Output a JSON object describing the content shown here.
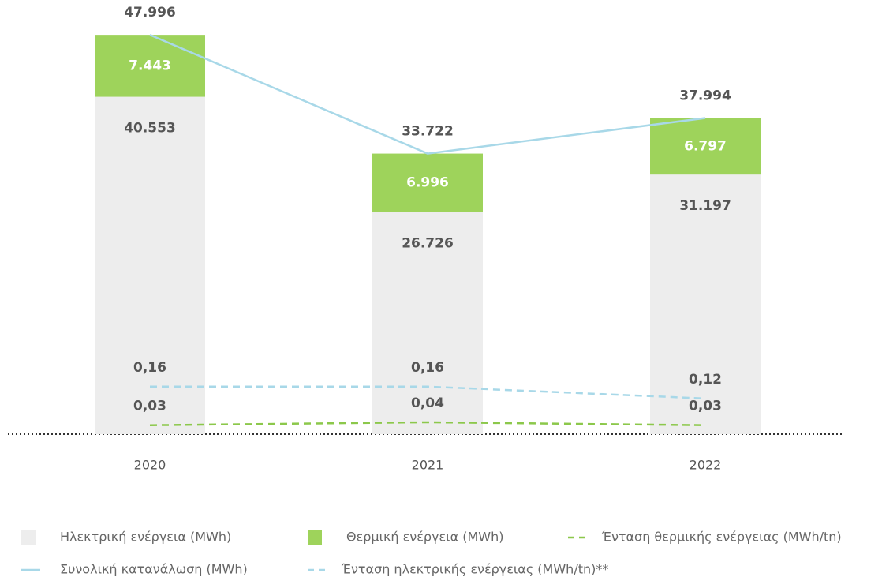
{
  "chart_data": {
    "type": "bar",
    "categories": [
      "2020",
      "2021",
      "2022"
    ],
    "ylim": [
      0,
      50000
    ],
    "y2lim": [
      0,
      1.4
    ],
    "series": [
      {
        "name": "Ηλεκτρική ενέργεια (MWh)",
        "type": "bar",
        "color": "#ededed",
        "values": [
          40553,
          26726,
          31197
        ],
        "value_labels": [
          "40.553",
          "26.726",
          "31.197"
        ]
      },
      {
        "name": "Θερμική ενέργεια (MWh)",
        "type": "bar",
        "color": "#9ed35b",
        "values": [
          7443,
          6996,
          6797
        ],
        "value_labels": [
          "7.443",
          "6.996",
          "6.797"
        ]
      },
      {
        "name": "Ένταση θερμικής ενέργειας (MWh/tn)",
        "type": "line",
        "style": "dashed",
        "axis": "y2",
        "color": "#8cc84b",
        "values": [
          0.03,
          0.04,
          0.03
        ],
        "value_labels": [
          "0,03",
          "0,04",
          "0,03"
        ]
      },
      {
        "name": "Συνολική κατανάλωση (MWh)",
        "type": "line",
        "style": "solid",
        "color": "#a8d8e8",
        "values": [
          47996,
          33722,
          37994
        ],
        "value_labels": [
          "47.996",
          "33.722",
          "37.994"
        ]
      },
      {
        "name": "Ένταση ηλεκτρικής ενέργειας (MWh/tn)**",
        "type": "line",
        "style": "dashed",
        "axis": "y2",
        "color": "#a8d8e8",
        "values": [
          0.16,
          0.16,
          0.12
        ],
        "value_labels": [
          "0,16",
          "0,16",
          "0,12"
        ]
      }
    ]
  }
}
